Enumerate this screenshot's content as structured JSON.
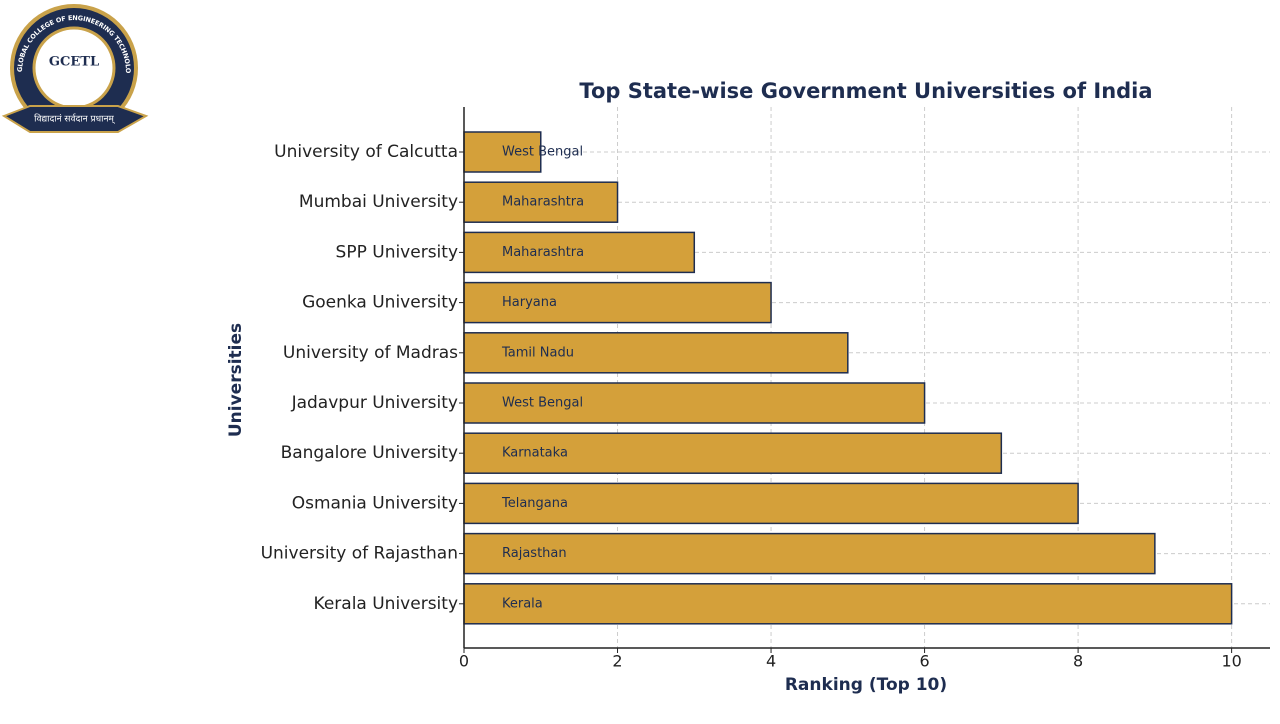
{
  "logo": {
    "abbr": "GCETL",
    "name": "GLOBAL COLLEGE OF ENGINEERING TECHNOLOGY & LEARNING",
    "motto": "विद्यादानं सर्वदान प्रधानम्"
  },
  "chart_data": {
    "type": "barh",
    "title": "Top State-wise Government Universities of India",
    "x_label": "Ranking (Top 10)",
    "y_label": "Universities",
    "categories": [
      "University of Calcutta",
      "Mumbai University",
      "SPP University",
      "Goenka University",
      "University of Madras",
      "Jadavpur University",
      "Bangalore University",
      "Osmania University",
      "University of Rajasthan",
      "Kerala University"
    ],
    "values": [
      1,
      2,
      3,
      4,
      5,
      6,
      7,
      8,
      9,
      10
    ],
    "bar_labels": [
      "West Bengal",
      "Maharashtra",
      "Maharashtra",
      "Haryana",
      "Tamil Nadu",
      "West Bengal",
      "Karnataka",
      "Telangana",
      "Rajasthan",
      "Kerala"
    ],
    "color": "#d4a03a",
    "edge_color": "#1e2d50",
    "xlim": [
      0,
      10.5
    ],
    "xticks": [
      0,
      2,
      4,
      6,
      8,
      10
    ],
    "grid": true
  }
}
